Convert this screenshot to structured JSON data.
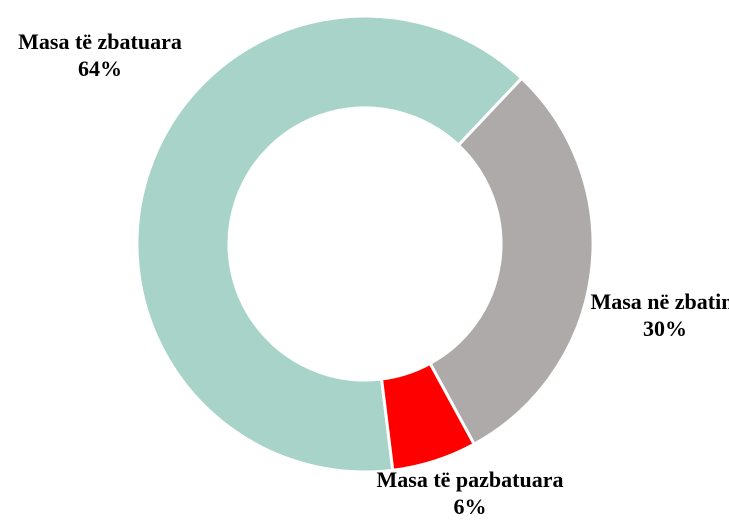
{
  "chart_data": {
    "type": "donut",
    "categories": [
      "Masa të zbatuara",
      "Masa në zbatim",
      "Masa të pazbatuara"
    ],
    "values": [
      64,
      30,
      6
    ],
    "value_labels": [
      "64%",
      "30%",
      "6%"
    ],
    "colors": [
      "#a8d3c8",
      "#aeaaa9",
      "#ff0000"
    ]
  }
}
